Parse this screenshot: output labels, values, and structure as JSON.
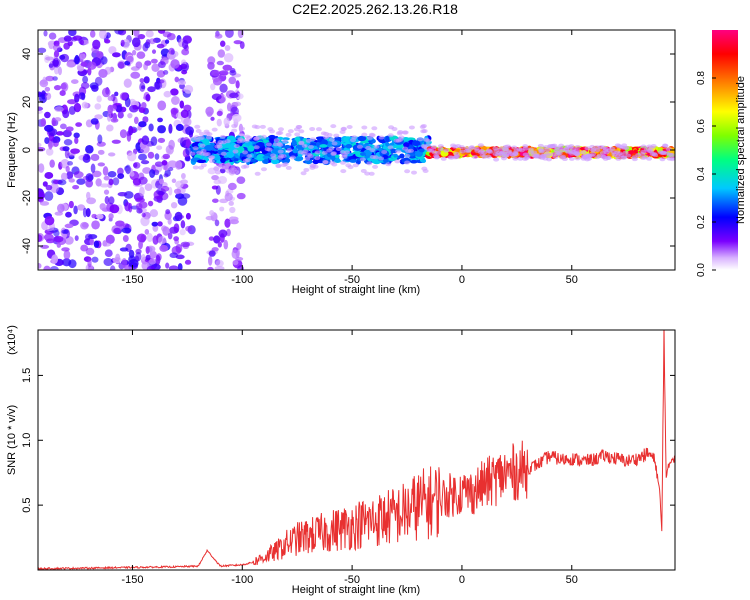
{
  "title": "C2E2.2025.262.13.26.R18",
  "chart_data": [
    {
      "type": "heatmap",
      "xlabel": "Height of straight line (km)",
      "ylabel": "Frequency (Hz)",
      "xlim": [
        -193,
        97
      ],
      "ylim": [
        -50,
        50
      ],
      "xticks": [
        -150,
        -100,
        -50,
        0,
        50
      ],
      "yticks": [
        -40,
        -20,
        0,
        20,
        40
      ],
      "colorbar": {
        "label": "Normalized spectral amplitude",
        "range": [
          0.0,
          1.0
        ],
        "ticks": [
          "0.0",
          "0.2",
          "0.4",
          "0.6",
          "0.8"
        ],
        "ticks_values": [
          0.0,
          0.2,
          0.4,
          0.6,
          0.8
        ],
        "colors": [
          "#ffffff",
          "#d9b3ff",
          "#7a00ff",
          "#0000ff",
          "#00c8ff",
          "#00ff80",
          "#7fff00",
          "#ffff00",
          "#ff8000",
          "#ff0000",
          "#ff0080"
        ]
      },
      "regions": [
        {
          "x_range": [
            -193,
            -123
          ],
          "freq_range": [
            -50,
            50
          ],
          "level": 0.15,
          "description_colors": "scattered purple"
        },
        {
          "x_range": [
            -115,
            -100
          ],
          "freq_range": [
            -50,
            50
          ],
          "level": 0.12
        },
        {
          "x_range": [
            -123,
            -15
          ],
          "freq_center": 0,
          "freq_halfwidth": 5,
          "level": 0.35
        },
        {
          "x_range": [
            -15,
            97
          ],
          "freq_center": -1,
          "freq_halfwidth": 1.5,
          "level": 0.95
        }
      ],
      "grid": false
    },
    {
      "type": "line",
      "xlabel": "Height of straight line (km)",
      "ylabel": "SNR (10 * v/v)",
      "y_multiplier": "(x10⁴)",
      "xlim": [
        -193,
        97
      ],
      "ylim": [
        0,
        1.85
      ],
      "xticks": [
        -150,
        -100,
        -50,
        0,
        50
      ],
      "yticks": [
        0.5,
        1.0,
        1.5
      ],
      "ytick_labels": [
        "0.5",
        "1.0",
        "1.5"
      ],
      "color": "#e83030",
      "grid": false,
      "x": [
        -193,
        -170,
        -150,
        -130,
        -120,
        -116,
        -110,
        -100,
        -95,
        -90,
        -85,
        -80,
        -75,
        -70,
        -65,
        -60,
        -55,
        -50,
        -45,
        -40,
        -35,
        -30,
        -25,
        -20,
        -15,
        -10,
        -5,
        0,
        5,
        10,
        15,
        20,
        25,
        30,
        35,
        40,
        45,
        50,
        55,
        60,
        65,
        70,
        75,
        80,
        85,
        88,
        90,
        91,
        92,
        93,
        95,
        97
      ],
      "y": [
        0.01,
        0.015,
        0.02,
        0.025,
        0.03,
        0.15,
        0.03,
        0.04,
        0.06,
        0.1,
        0.14,
        0.2,
        0.24,
        0.26,
        0.28,
        0.3,
        0.32,
        0.34,
        0.36,
        0.38,
        0.4,
        0.42,
        0.45,
        0.5,
        0.52,
        0.55,
        0.58,
        0.6,
        0.6,
        0.66,
        0.7,
        0.74,
        0.76,
        0.78,
        0.82,
        0.88,
        0.85,
        0.86,
        0.84,
        0.85,
        0.88,
        0.86,
        0.84,
        0.86,
        0.9,
        0.84,
        0.6,
        0.3,
        1.85,
        0.7,
        0.85,
        0.88
      ]
    }
  ]
}
